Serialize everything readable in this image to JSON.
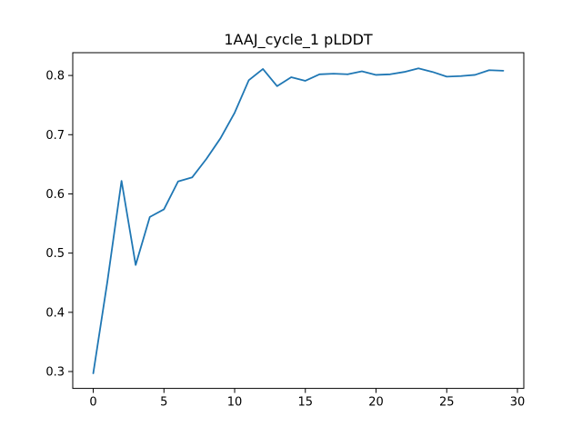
{
  "chart_data": {
    "type": "line",
    "title": "1AAJ_cycle_1 pLDDT",
    "xlabel": "",
    "ylabel": "",
    "xlim": [
      -1.45,
      30.45
    ],
    "ylim": [
      0.2715,
      0.8385
    ],
    "xticks": [
      0,
      5,
      10,
      15,
      20,
      25,
      30
    ],
    "yticks": [
      0.3,
      0.4,
      0.5,
      0.6,
      0.7,
      0.8
    ],
    "xtick_labels": [
      "0",
      "5",
      "10",
      "15",
      "20",
      "25",
      "30"
    ],
    "ytick_labels": [
      "0.3",
      "0.4",
      "0.5",
      "0.6",
      "0.7",
      "0.8"
    ],
    "grid": false,
    "legend": "none",
    "series": [
      {
        "color": "#1f77b4",
        "x": [
          0,
          1,
          2,
          3,
          4,
          5,
          6,
          7,
          8,
          9,
          10,
          11,
          12,
          13,
          14,
          15,
          16,
          17,
          18,
          19,
          20,
          21,
          22,
          23,
          24,
          25,
          26,
          27,
          28,
          29
        ],
        "values": [
          0.297,
          0.452,
          0.622,
          0.48,
          0.561,
          0.574,
          0.621,
          0.628,
          0.659,
          0.694,
          0.737,
          0.792,
          0.811,
          0.782,
          0.797,
          0.791,
          0.802,
          0.803,
          0.802,
          0.807,
          0.801,
          0.802,
          0.806,
          0.812,
          0.806,
          0.798,
          0.799,
          0.801,
          0.809,
          0.808
        ]
      }
    ]
  }
}
